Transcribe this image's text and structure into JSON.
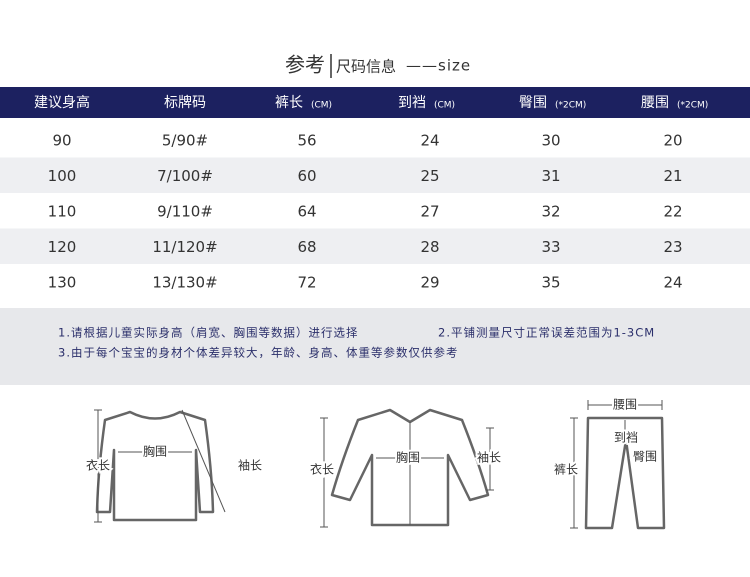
{
  "header": {
    "title": "参考",
    "subtitle": "尺码信息",
    "suffix": "——size"
  },
  "table": {
    "columns": [
      {
        "name": "建议身高"
      },
      {
        "name": "标牌码"
      },
      {
        "name": "裤长",
        "unit": "(CM)"
      },
      {
        "name": "到裆",
        "unit": "(CM)"
      },
      {
        "name": "臀围",
        "unit": "(*2CM)"
      },
      {
        "name": "腰围",
        "unit": "(*2CM)"
      }
    ],
    "rows": [
      [
        90,
        "5/90#",
        56,
        24,
        30,
        20
      ],
      [
        100,
        "7/100#",
        60,
        25,
        31,
        21
      ],
      [
        110,
        "9/110#",
        64,
        27,
        32,
        22
      ],
      [
        120,
        "11/120#",
        68,
        28,
        33,
        23
      ],
      [
        130,
        "13/130#",
        72,
        29,
        35,
        24
      ]
    ]
  },
  "notes": [
    "1.请根据儿童实际身高（肩宽、胸围等数据）进行选择",
    "2.平铺测量尺寸正常误差范围为1-3CM",
    "3.由于每个宝宝的身材个体差异较大，年龄、身高、体重等参数仅供参考"
  ],
  "diagrams": [
    {
      "labels": [
        "衣长",
        "胸围",
        "袖长"
      ]
    },
    {
      "labels": [
        "衣长",
        "胸围",
        "袖长"
      ]
    },
    {
      "labels": [
        "腰围",
        "到裆",
        "裤长",
        "臀围"
      ]
    }
  ]
}
